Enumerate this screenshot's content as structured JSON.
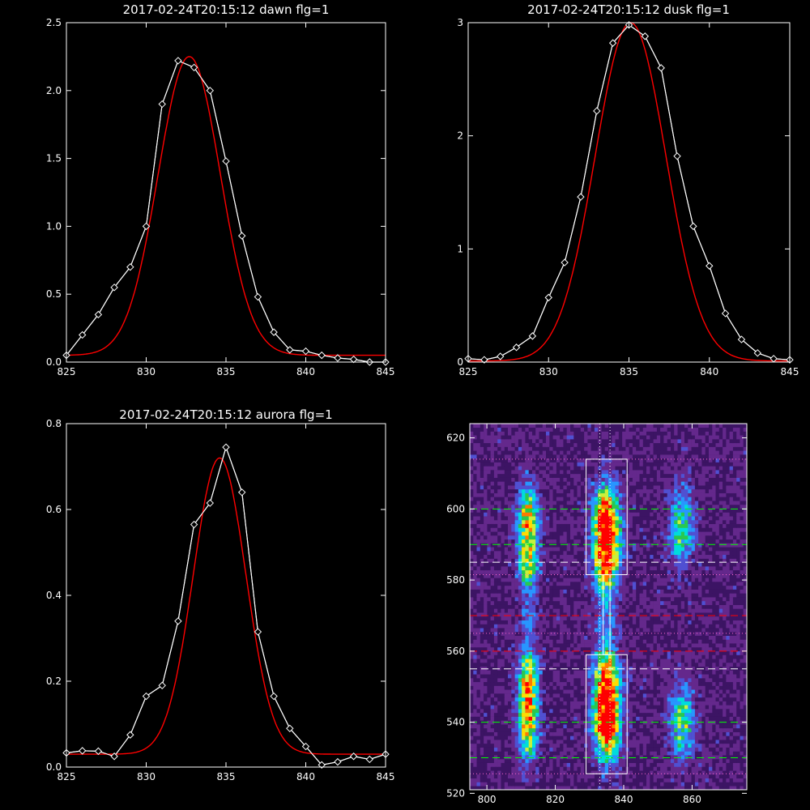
{
  "chart_data": [
    {
      "type": "line",
      "title": "2017-02-24T20:15:12 dawn flg=1",
      "xlim": [
        825,
        845
      ],
      "ylim": [
        0,
        2.5
      ],
      "xticks": [
        825,
        830,
        835,
        840,
        845
      ],
      "yticks": [
        0.0,
        0.5,
        1.0,
        1.5,
        2.0,
        2.5
      ],
      "ytick_labels": [
        "0.0",
        "0.5",
        "1.0",
        "1.5",
        "2.0",
        "2.5"
      ],
      "series": [
        {
          "color": "#ffffff",
          "markers": "diamond",
          "x": [
            825,
            826,
            827,
            828,
            829,
            830,
            831,
            832,
            833,
            834,
            835,
            836,
            837,
            838,
            839,
            840,
            841,
            842,
            843,
            844,
            845
          ],
          "y": [
            0.05,
            0.2,
            0.35,
            0.55,
            0.7,
            1.0,
            1.9,
            2.22,
            2.17,
            2.0,
            1.48,
            0.93,
            0.48,
            0.22,
            0.09,
            0.08,
            0.05,
            0.03,
            0.02,
            0.0,
            0.0
          ]
        },
        {
          "color": "#ff0000",
          "model": "gaussian",
          "amplitude": 2.2,
          "center": 832.7,
          "sigma": 1.95,
          "offset": 0.05
        }
      ]
    },
    {
      "type": "line",
      "title": "2017-02-24T20:15:12 dusk flg=1",
      "xlim": [
        825,
        845
      ],
      "ylim": [
        0,
        3
      ],
      "xticks": [
        825,
        830,
        835,
        840,
        845
      ],
      "yticks": [
        0,
        1,
        2,
        3
      ],
      "ytick_labels": [
        "0",
        "1",
        "2",
        "3"
      ],
      "series": [
        {
          "color": "#ffffff",
          "markers": "diamond",
          "x": [
            825,
            826,
            827,
            828,
            829,
            830,
            831,
            832,
            833,
            834,
            835,
            836,
            837,
            838,
            839,
            840,
            841,
            842,
            843,
            844,
            845
          ],
          "y": [
            0.03,
            0.02,
            0.05,
            0.13,
            0.23,
            0.57,
            0.88,
            1.46,
            2.22,
            2.82,
            2.98,
            2.88,
            2.6,
            1.82,
            1.2,
            0.85,
            0.43,
            0.2,
            0.08,
            0.03,
            0.02
          ]
        },
        {
          "color": "#ff0000",
          "model": "gaussian",
          "amplitude": 2.99,
          "center": 835.1,
          "sigma": 2.2,
          "offset": 0.01
        }
      ]
    },
    {
      "type": "line",
      "title": "2017-02-24T20:15:12 aurora flg=1",
      "xlim": [
        825,
        845
      ],
      "ylim": [
        0,
        0.8
      ],
      "xticks": [
        825,
        830,
        835,
        840,
        845
      ],
      "yticks": [
        0.0,
        0.2,
        0.4,
        0.6,
        0.8
      ],
      "ytick_labels": [
        "0.0",
        "0.2",
        "0.4",
        "0.6",
        "0.8"
      ],
      "series": [
        {
          "color": "#ffffff",
          "markers": "diamond",
          "x": [
            825,
            826,
            827,
            828,
            829,
            830,
            831,
            832,
            833,
            834,
            835,
            836,
            837,
            838,
            839,
            840,
            841,
            842,
            843,
            844,
            845
          ],
          "y": [
            0.033,
            0.038,
            0.037,
            0.025,
            0.075,
            0.165,
            0.19,
            0.34,
            0.565,
            0.615,
            0.745,
            0.64,
            0.315,
            0.165,
            0.09,
            0.048,
            0.005,
            0.012,
            0.025,
            0.018,
            0.03
          ]
        },
        {
          "color": "#ff0000",
          "model": "gaussian",
          "amplitude": 0.69,
          "center": 834.6,
          "sigma": 1.65,
          "offset": 0.03
        }
      ]
    },
    {
      "type": "heatmap",
      "xlim": [
        795,
        876
      ],
      "ylim": [
        521,
        624
      ],
      "xticks": [
        800,
        820,
        840,
        860
      ],
      "yticks": [
        520,
        540,
        560,
        580,
        600,
        620
      ],
      "colormap": [
        "#000000",
        "#3c1464",
        "#64288c",
        "#5050d2",
        "#2896ff",
        "#00dcdc",
        "#28c850",
        "#c8f03c",
        "#ffdc00",
        "#ff7800",
        "#ff0000"
      ],
      "blobs": [
        {
          "x": 812,
          "y": 597,
          "sx": 2.0,
          "sy": 6.5,
          "amp": 0.62
        },
        {
          "x": 812,
          "y": 584,
          "sx": 2.0,
          "sy": 5.0,
          "amp": 0.45
        },
        {
          "x": 812,
          "y": 541,
          "sx": 2.0,
          "sy": 8.0,
          "amp": 0.65
        },
        {
          "x": 812,
          "y": 553,
          "sx": 2.0,
          "sy": 5.0,
          "amp": 0.42
        },
        {
          "x": 835,
          "y": 596,
          "sx": 2.5,
          "sy": 7.0,
          "amp": 0.95
        },
        {
          "x": 835,
          "y": 584,
          "sx": 2.5,
          "sy": 5.0,
          "amp": 0.6
        },
        {
          "x": 835,
          "y": 540,
          "sx": 2.5,
          "sy": 7.0,
          "amp": 0.9
        },
        {
          "x": 835,
          "y": 552,
          "sx": 2.5,
          "sy": 6.0,
          "amp": 0.65
        },
        {
          "x": 857,
          "y": 595,
          "sx": 2.5,
          "sy": 7.5,
          "amp": 0.4
        },
        {
          "x": 857,
          "y": 540,
          "sx": 2.5,
          "sy": 7.0,
          "amp": 0.42
        },
        {
          "x": 812,
          "y": 569,
          "sx": 1.8,
          "sy": 5.0,
          "amp": 0.18
        },
        {
          "x": 835,
          "y": 569,
          "sx": 2.0,
          "sy": 6.0,
          "amp": 0.22
        }
      ],
      "hot_spots": [
        {
          "x": 836,
          "y": 596,
          "color": "#ff0000"
        },
        {
          "x": 835,
          "y": 586,
          "color": "#ff0000"
        },
        {
          "x": 833,
          "y": 538,
          "color": "#ff0000"
        },
        {
          "x": 812,
          "y": 549,
          "color": "#ff0000"
        }
      ],
      "overlays": {
        "boxes": [
          {
            "x0": 829,
            "x1": 841,
            "y0": 581.5,
            "y1": 614
          },
          {
            "x0": 829,
            "x1": 841,
            "y0": 525.5,
            "y1": 559
          }
        ],
        "bridge": {
          "x0": 834,
          "x1": 836,
          "y0": 559,
          "y1": 581.5
        },
        "hlines": [
          {
            "y": 600,
            "color": "#00ff00",
            "style": "dashed"
          },
          {
            "y": 590,
            "color": "#00ff00",
            "style": "dashed"
          },
          {
            "y": 585,
            "color": "#ffffff",
            "style": "dashed"
          },
          {
            "y": 614,
            "color": "#ff66cc",
            "style": "dotted"
          },
          {
            "y": 581.5,
            "color": "#ff66cc",
            "style": "dotted"
          },
          {
            "y": 570,
            "color": "#ff0000",
            "style": "dashed"
          },
          {
            "y": 565,
            "color": "#ff66cc",
            "style": "dotted"
          },
          {
            "y": 560,
            "color": "#ff0000",
            "style": "dashed"
          },
          {
            "y": 555,
            "color": "#ffffff",
            "style": "dashed"
          },
          {
            "y": 540,
            "color": "#00ff00",
            "style": "dashed"
          },
          {
            "y": 530,
            "color": "#00ff00",
            "style": "dashed"
          },
          {
            "y": 525.5,
            "color": "#ff66cc",
            "style": "dotted"
          }
        ],
        "vlines": [
          {
            "x": 833,
            "color": "#ffffff",
            "style": "dotted"
          },
          {
            "x": 836,
            "color": "#ffffff",
            "style": "dotted"
          }
        ]
      }
    }
  ]
}
